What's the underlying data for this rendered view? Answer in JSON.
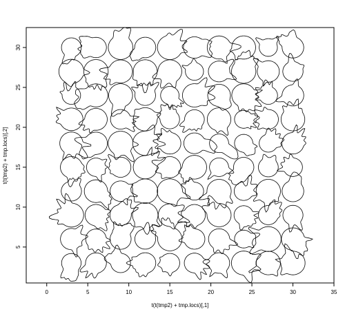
{
  "chart_data": {
    "type": "scatter",
    "marker": "irregular-glyph",
    "title": "",
    "xlabel": "t(t(tmp2) + tmp.locs)[,1]",
    "ylabel": "t(t(tmp2) + tmp.locs)[,2]",
    "xlim": [
      -2.5,
      35
    ],
    "ylim": [
      0.5,
      32.5
    ],
    "xticks": [
      0,
      5,
      10,
      15,
      20,
      25,
      30,
      35
    ],
    "yticks": [
      5,
      10,
      15,
      20,
      25,
      30
    ],
    "grid": false,
    "legend": "none",
    "x": [
      3,
      6,
      9,
      12,
      15,
      18,
      21,
      24,
      27,
      30
    ],
    "y": [
      3,
      6,
      9,
      12,
      15,
      18,
      21,
      24,
      27,
      30
    ],
    "glyph_count": 100,
    "stroke_color": "#000000"
  }
}
